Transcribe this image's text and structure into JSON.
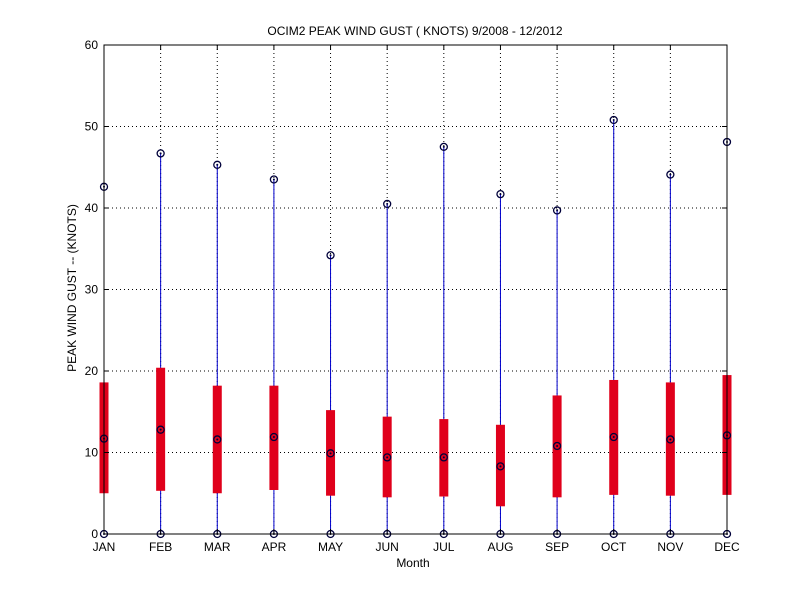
{
  "chart_data": {
    "type": "box",
    "title": "OCIM2  PEAK WIND GUST ( KNOTS) 9/2008 - 12/2012",
    "xlabel": "Month",
    "ylabel": "PEAK WIND GUST -- (KNOTS)",
    "ylim": [
      0,
      60
    ],
    "yticks": [
      "0",
      "10",
      "20",
      "30",
      "40",
      "50",
      "60"
    ],
    "grid": true,
    "categories": [
      "JAN",
      "FEB",
      "MAR",
      "APR",
      "MAY",
      "JUN",
      "JUL",
      "AUG",
      "SEP",
      "OCT",
      "NOV",
      "DEC"
    ],
    "series": [
      {
        "min": [
          0,
          0,
          0,
          0,
          0,
          0,
          0,
          0,
          0,
          0,
          0,
          0
        ],
        "q1": [
          5.0,
          5.3,
          5.0,
          5.4,
          4.7,
          4.5,
          4.6,
          3.4,
          4.5,
          4.8,
          4.7,
          4.8
        ],
        "median": [
          11.7,
          12.8,
          11.6,
          11.9,
          9.9,
          9.4,
          9.4,
          8.3,
          10.8,
          11.9,
          11.6,
          12.1
        ],
        "q3": [
          18.6,
          20.4,
          18.2,
          18.2,
          15.2,
          14.4,
          14.1,
          13.4,
          17.0,
          18.9,
          18.6,
          19.5
        ],
        "max": [
          42.6,
          46.7,
          45.3,
          43.5,
          34.2,
          40.5,
          47.5,
          41.7,
          39.7,
          50.8,
          44.1,
          48.1
        ]
      }
    ],
    "colors": {
      "whisker": "#0000cc",
      "box": "#e0001b",
      "marker": "#00003a",
      "grid": "#000000"
    }
  }
}
